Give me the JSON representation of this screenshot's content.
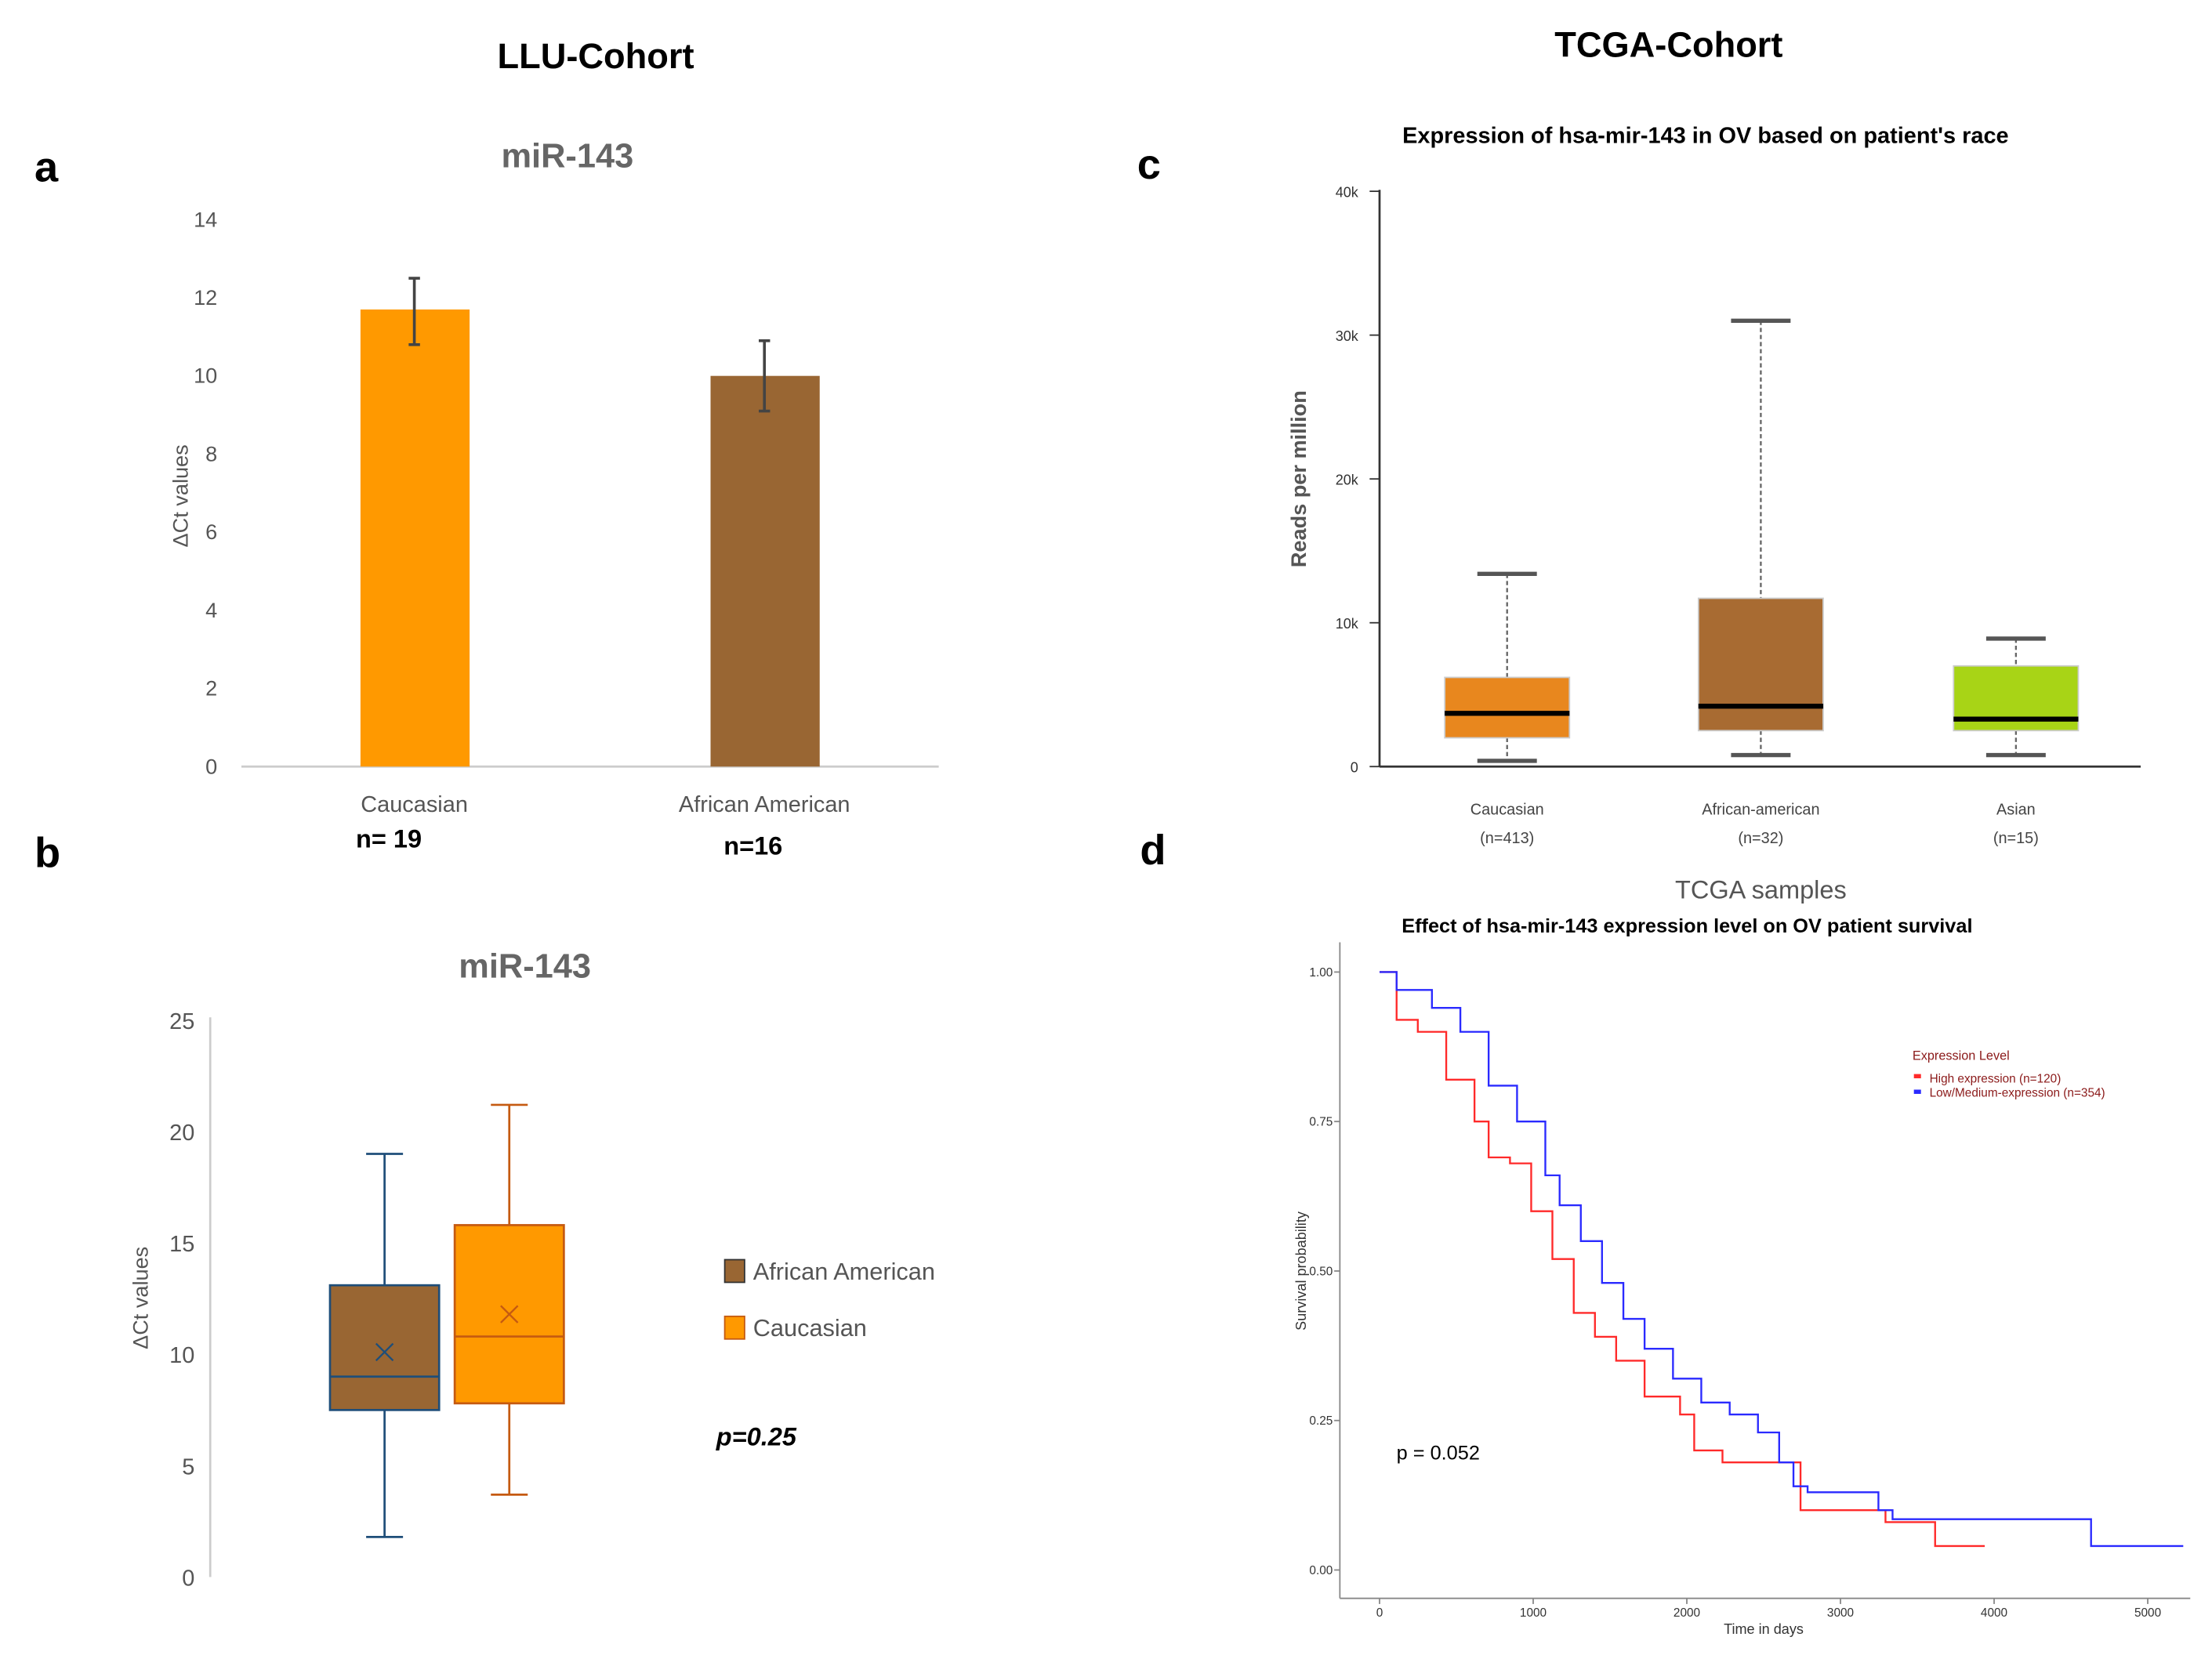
{
  "headings": {
    "left": "LLU-Cohort",
    "right": "TCGA-Cohort"
  },
  "panel_labels": {
    "a": "a",
    "b": "b",
    "c": "c",
    "d": "d"
  },
  "colors": {
    "orange": "#ff9900",
    "brown": "#996633",
    "tcga_caucasian": "#e8871e",
    "tcga_african": "#a86b32",
    "tcga_asian": "#a8d416",
    "km_high": "#ff2a2a",
    "km_low": "#2a2aff"
  },
  "chart_data": [
    {
      "id": "a",
      "type": "bar",
      "title": "miR-143",
      "ylabel": "ΔCt values",
      "ylim": [
        0,
        14
      ],
      "yticks": [
        0,
        2,
        4,
        6,
        8,
        10,
        12,
        14
      ],
      "categories": [
        "Caucasian",
        "African American"
      ],
      "values": [
        11.7,
        10.0
      ],
      "error_bars": [
        [
          10.8,
          12.5
        ],
        [
          9.1,
          10.9
        ]
      ],
      "colors": [
        "#ff9900",
        "#996633"
      ],
      "sample_sizes": [
        "n= 19",
        "n=16"
      ],
      "grid": false
    },
    {
      "id": "b",
      "type": "box",
      "title": "miR-143",
      "ylabel": "ΔCt values",
      "ylim": [
        0,
        25
      ],
      "yticks": [
        0,
        5,
        10,
        15,
        20,
        25
      ],
      "series": [
        {
          "name": "African American",
          "min": 1.8,
          "q1": 7.5,
          "median": 9.0,
          "q3": 13.1,
          "max": 19.0,
          "mean": 10.1,
          "fill": "#996633",
          "stroke": "#1f4e79"
        },
        {
          "name": "Caucasian",
          "min": 3.7,
          "q1": 7.8,
          "median": 10.8,
          "q3": 15.8,
          "max": 21.2,
          "mean": 11.8,
          "fill": "#ff9900",
          "stroke": "#c55a11"
        }
      ],
      "legend_position": "right",
      "annotation": "p=0.25"
    },
    {
      "id": "c",
      "type": "box",
      "title": "Expression of hsa-mir-143 in OV based on patient's race",
      "ylabel": "Reads per million",
      "ylim": [
        0,
        40000
      ],
      "yticks": [
        0,
        10000,
        20000,
        30000,
        40000
      ],
      "ytick_labels": [
        "0",
        "10k",
        "20k",
        "30k",
        "40k"
      ],
      "categories": [
        "Caucasian",
        "African-american",
        "Asian"
      ],
      "sample_sizes": [
        "(n=413)",
        "(n=32)",
        "(n=15)"
      ],
      "series": [
        {
          "min": 400,
          "q1": 2000,
          "median": 3700,
          "q3": 6200,
          "max": 13400,
          "fill": "#e8871e"
        },
        {
          "min": 800,
          "q1": 2500,
          "median": 4200,
          "q3": 11700,
          "max": 31000,
          "fill": "#a86b32"
        },
        {
          "min": 800,
          "q1": 2500,
          "median": 3300,
          "q3": 7000,
          "max": 8900,
          "fill": "#a8d416"
        }
      ]
    },
    {
      "id": "d",
      "type": "line",
      "supertitle": "TCGA samples",
      "title": "Effect of hsa-mir-143 expression level on OV patient survival",
      "xlabel": "Time in days",
      "ylabel": "Survival probability",
      "xlim": [
        0,
        5000
      ],
      "ylim": [
        0,
        1
      ],
      "xticks": [
        0,
        1000,
        2000,
        3000,
        4000,
        5000
      ],
      "yticks": [
        "0.00",
        "0.25",
        "0.50",
        "0.75",
        "1.00"
      ],
      "legend_title": "Expression Level",
      "legend_position": "top-right",
      "annotation": "p = 0.052",
      "series": [
        {
          "name": "High expression (n=120)",
          "color": "#ff2a2a",
          "x": [
            0,
            111,
            249,
            434,
            618,
            710,
            849,
            987,
            1125,
            1264,
            1402,
            1540,
            1725,
            1956,
            2048,
            2232,
            2648,
            2740,
            3247,
            3293,
            3570,
            3616,
            3939
          ],
          "y": [
            1.0,
            0.92,
            0.9,
            0.82,
            0.75,
            0.69,
            0.68,
            0.6,
            0.52,
            0.43,
            0.39,
            0.35,
            0.29,
            0.26,
            0.2,
            0.18,
            0.18,
            0.1,
            0.1,
            0.08,
            0.08,
            0.04,
            0.04
          ]
        },
        {
          "name": "Low/Medium-expression (n=354)",
          "color": "#2a2aff",
          "x": [
            0,
            111,
            341,
            526,
            710,
            895,
            1079,
            1172,
            1310,
            1448,
            1587,
            1725,
            1910,
            2094,
            2279,
            2463,
            2601,
            2694,
            2786,
            3201,
            3247,
            3339,
            4585,
            4631,
            5231
          ],
          "y": [
            1.0,
            0.97,
            0.94,
            0.9,
            0.81,
            0.75,
            0.66,
            0.61,
            0.55,
            0.48,
            0.42,
            0.37,
            0.32,
            0.28,
            0.26,
            0.23,
            0.18,
            0.14,
            0.13,
            0.13,
            0.1,
            0.085,
            0.085,
            0.04,
            0.04
          ]
        }
      ]
    }
  ]
}
